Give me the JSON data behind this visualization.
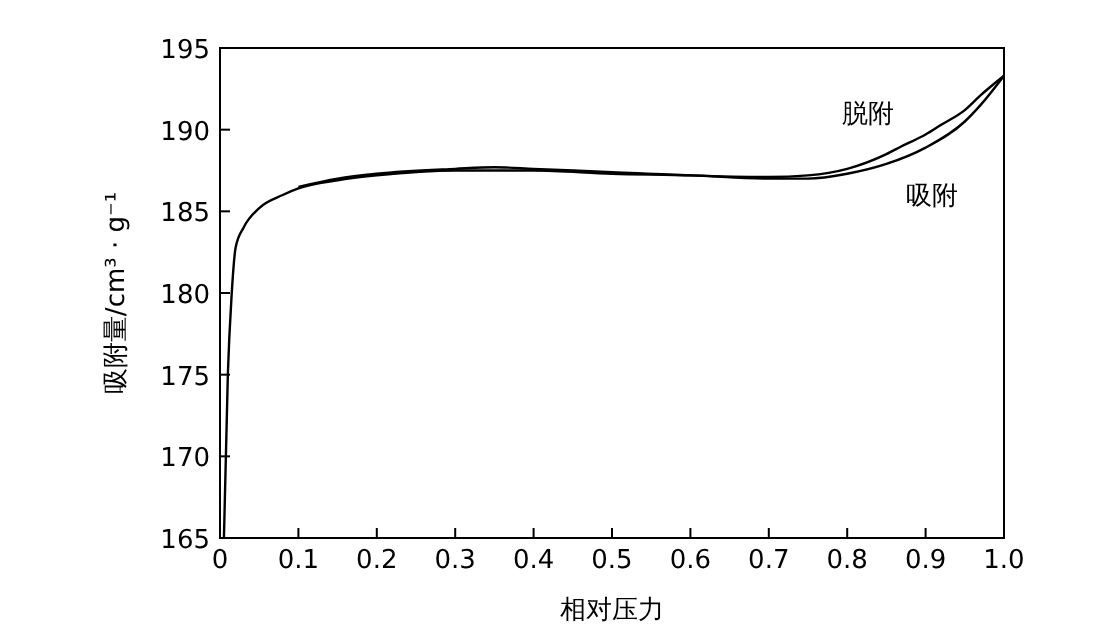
{
  "chart_data": {
    "type": "line",
    "xlabel": "相对压力",
    "ylabel": "吸附量/cm³ · g⁻¹",
    "xlim": [
      0,
      1.0
    ],
    "ylim": [
      165,
      195
    ],
    "xticks": [
      0,
      0.1,
      0.2,
      0.3,
      0.4,
      0.5,
      0.6,
      0.7,
      0.8,
      0.9,
      {
        "value": 1.0,
        "label": "1.0"
      }
    ],
    "yticks": [
      165,
      170,
      175,
      180,
      185,
      190,
      195
    ],
    "grid": false,
    "marker": "none",
    "line_style": "solid",
    "series": [
      {
        "name": "脱附",
        "color": "#000000",
        "x": [
          1.0,
          0.97,
          0.95,
          0.92,
          0.9,
          0.87,
          0.85,
          0.8,
          0.75,
          0.7,
          0.6,
          0.5,
          0.4,
          0.35,
          0.3,
          0.2,
          0.15,
          0.1
        ],
        "values": [
          193.3,
          192.1,
          191.2,
          190.3,
          189.7,
          189.0,
          188.5,
          187.6,
          187.2,
          187.1,
          187.2,
          187.4,
          187.6,
          187.7,
          187.6,
          187.3,
          187.0,
          186.5
        ]
      },
      {
        "name": "吸附",
        "color": "#000000",
        "x": [
          0.005,
          0.01,
          0.015,
          0.02,
          0.03,
          0.05,
          0.08,
          0.1,
          0.15,
          0.2,
          0.3,
          0.4,
          0.5,
          0.6,
          0.7,
          0.75,
          0.8,
          0.85,
          0.9,
          0.95,
          0.97,
          1.0
        ],
        "values": [
          165,
          175,
          180,
          182.8,
          184,
          185.2,
          186,
          186.4,
          186.9,
          187.2,
          187.5,
          187.5,
          187.3,
          187.2,
          187.0,
          187.0,
          187.3,
          187.9,
          188.9,
          190.5,
          191.5,
          193.3
        ]
      }
    ]
  }
}
